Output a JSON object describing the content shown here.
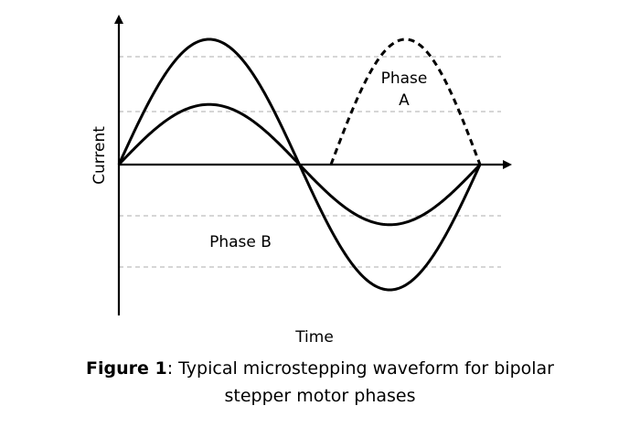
{
  "diagram": {
    "axis_labels": {
      "vertical": "Current",
      "horizontal": "Time"
    },
    "curve_labels": {
      "phase_a_line1": "Phase",
      "phase_a_line2": "A",
      "phase_b": "Phase B"
    },
    "curves": [
      {
        "label": "Phase B",
        "style": "solid",
        "relative_amplitude": 1.0
      },
      {
        "label": "Phase B",
        "style": "solid",
        "relative_amplitude": 0.48
      },
      {
        "label": "Phase A",
        "style": "dashed",
        "relative_amplitude": 1.0
      }
    ],
    "reference_lines": "dashed gray",
    "colors": {
      "line": "#000000",
      "reference": "#bdbdbd",
      "background": "#ffffff"
    }
  },
  "caption": {
    "label": "Figure 1",
    "text_line1": ": Typical microstepping waveform for bipolar",
    "text_line2": "stepper motor phases"
  }
}
